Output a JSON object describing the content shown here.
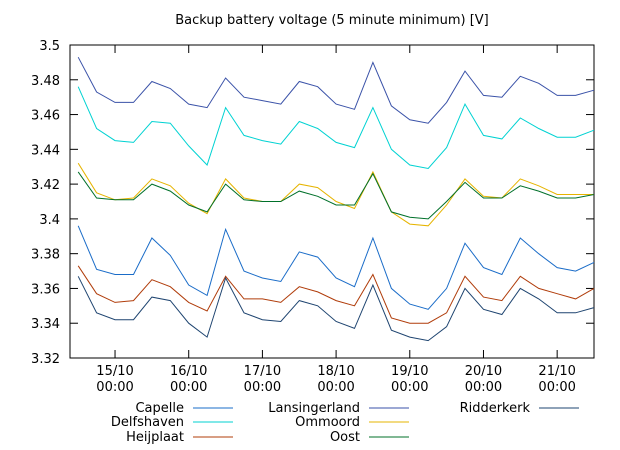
{
  "chart_data": {
    "type": "line",
    "title": "Backup battery voltage (5 minute minimum) [V]",
    "x": [
      "14/10 12:00",
      "14/10 18:00",
      "15/10 00:00",
      "15/10 06:00",
      "15/10 12:00",
      "15/10 18:00",
      "16/10 00:00",
      "16/10 06:00",
      "16/10 12:00",
      "16/10 18:00",
      "17/10 00:00",
      "17/10 06:00",
      "17/10 12:00",
      "17/10 18:00",
      "18/10 00:00",
      "18/10 06:00",
      "18/10 12:00",
      "18/10 18:00",
      "19/10 00:00",
      "19/10 06:00",
      "19/10 12:00",
      "19/10 18:00",
      "20/10 00:00",
      "20/10 06:00",
      "20/10 12:00",
      "20/10 18:00",
      "21/10 00:00",
      "21/10 06:00",
      "21/10 12:00"
    ],
    "xlim": [
      "14/10 09:20",
      "21/10 12:00"
    ],
    "xticks": [
      "15/10 00:00",
      "16/10 00:00",
      "17/10 00:00",
      "18/10 00:00",
      "19/10 00:00",
      "20/10 00:00",
      "21/10 00:00"
    ],
    "ylim": [
      3.32,
      3.5
    ],
    "yticks": [
      3.32,
      3.34,
      3.36,
      3.38,
      3.4,
      3.42,
      3.44,
      3.46,
      3.48,
      3.5
    ],
    "grid": false,
    "legend": "bottom",
    "series": [
      {
        "name": "Capelle",
        "color": "#1a6cc8",
        "values": [
          3.396,
          3.371,
          3.368,
          3.368,
          3.389,
          3.379,
          3.362,
          3.356,
          3.394,
          3.37,
          3.366,
          3.364,
          3.381,
          3.378,
          3.366,
          3.361,
          3.389,
          3.36,
          3.351,
          3.348,
          3.36,
          3.386,
          3.372,
          3.368,
          3.389,
          3.38,
          3.372,
          3.37,
          3.375
        ]
      },
      {
        "name": "Delfshaven",
        "color": "#00d2d2",
        "values": [
          3.476,
          3.452,
          3.445,
          3.444,
          3.456,
          3.455,
          3.442,
          3.431,
          3.464,
          3.448,
          3.445,
          3.443,
          3.456,
          3.452,
          3.444,
          3.441,
          3.464,
          3.44,
          3.431,
          3.429,
          3.441,
          3.466,
          3.448,
          3.446,
          3.458,
          3.452,
          3.447,
          3.447,
          3.451
        ]
      },
      {
        "name": "Heijplaat",
        "color": "#b03c0a",
        "values": [
          3.373,
          3.357,
          3.352,
          3.353,
          3.365,
          3.361,
          3.352,
          3.347,
          3.367,
          3.354,
          3.354,
          3.352,
          3.361,
          3.358,
          3.353,
          3.35,
          3.368,
          3.343,
          3.34,
          3.34,
          3.346,
          3.367,
          3.355,
          3.353,
          3.367,
          3.36,
          3.357,
          3.354,
          3.36
        ]
      },
      {
        "name": "Lansingerland",
        "color": "#3a52a8",
        "values": [
          3.493,
          3.473,
          3.467,
          3.467,
          3.479,
          3.475,
          3.466,
          3.464,
          3.481,
          3.47,
          3.468,
          3.466,
          3.479,
          3.476,
          3.466,
          3.463,
          3.49,
          3.465,
          3.457,
          3.455,
          3.467,
          3.485,
          3.471,
          3.47,
          3.482,
          3.478,
          3.471,
          3.471,
          3.474
        ]
      },
      {
        "name": "Ommoord",
        "color": "#e6b400",
        "values": [
          3.432,
          3.415,
          3.411,
          3.412,
          3.423,
          3.419,
          3.409,
          3.403,
          3.423,
          3.412,
          3.41,
          3.41,
          3.42,
          3.418,
          3.41,
          3.406,
          3.427,
          3.404,
          3.397,
          3.396,
          3.408,
          3.423,
          3.413,
          3.412,
          3.423,
          3.419,
          3.414,
          3.414,
          3.414
        ]
      },
      {
        "name": "Oost",
        "color": "#00702a",
        "values": [
          3.427,
          3.412,
          3.411,
          3.411,
          3.42,
          3.416,
          3.408,
          3.404,
          3.42,
          3.411,
          3.41,
          3.41,
          3.416,
          3.413,
          3.408,
          3.408,
          3.426,
          3.404,
          3.401,
          3.4,
          3.41,
          3.421,
          3.412,
          3.412,
          3.419,
          3.416,
          3.412,
          3.412,
          3.414
        ]
      },
      {
        "name": "Ridderkerk",
        "color": "#1e4470",
        "values": [
          3.367,
          3.346,
          3.342,
          3.342,
          3.355,
          3.353,
          3.34,
          3.332,
          3.366,
          3.346,
          3.342,
          3.341,
          3.353,
          3.35,
          3.341,
          3.337,
          3.362,
          3.336,
          3.332,
          3.33,
          3.338,
          3.36,
          3.348,
          3.345,
          3.36,
          3.354,
          3.346,
          3.346,
          3.349
        ]
      }
    ]
  }
}
